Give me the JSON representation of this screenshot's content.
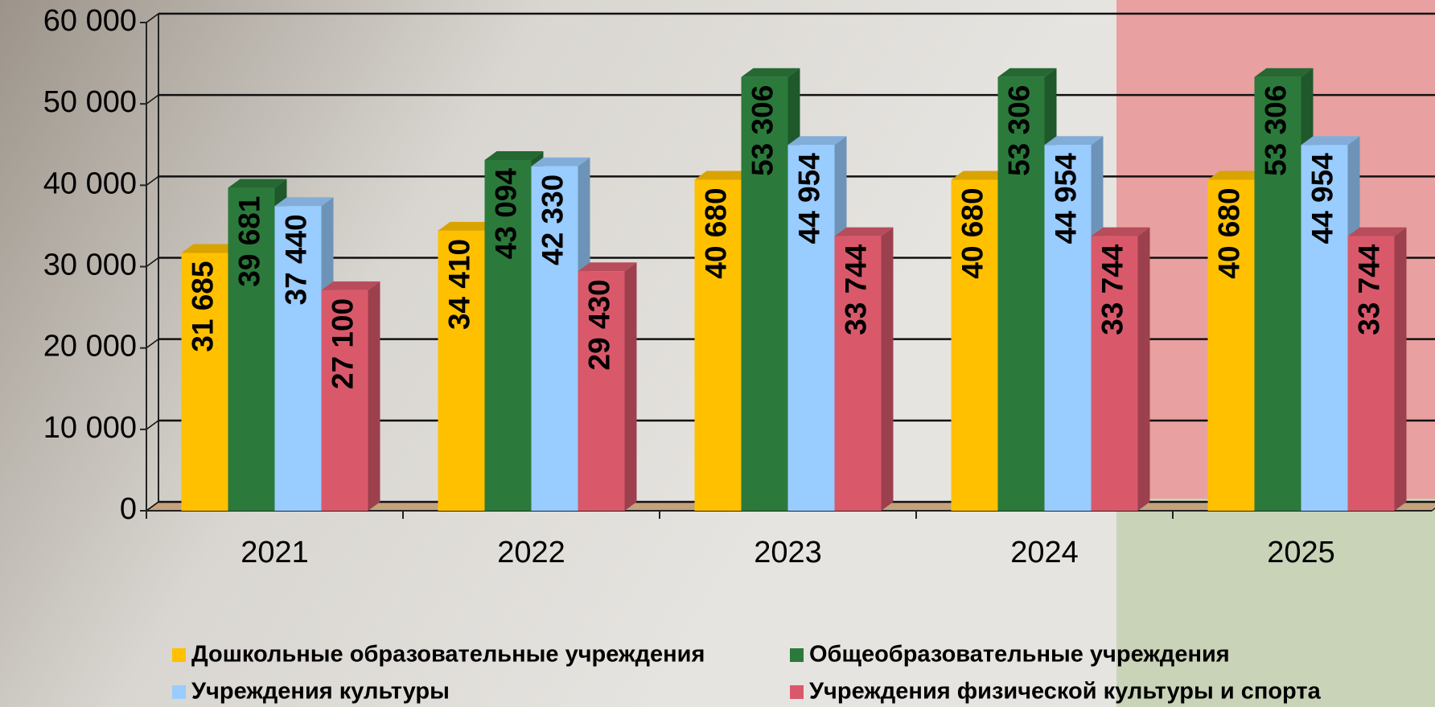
{
  "chart_data": {
    "type": "bar3d",
    "categories": [
      "2021",
      "2022",
      "2023",
      "2024",
      "2025"
    ],
    "series": [
      {
        "name": "Дошкольные образовательные учреждения",
        "color": "#ffc000",
        "values": [
          31685,
          34410,
          40680,
          40680,
          40680
        ],
        "value_labels": [
          "31 685",
          "34 410",
          "40 680",
          "40 680",
          "40 680"
        ]
      },
      {
        "name": "Общеобразовательные учреждения",
        "color": "#2b7a3b",
        "values": [
          39681,
          43094,
          53306,
          53306,
          53306
        ],
        "value_labels": [
          "39 681",
          "43 094",
          "53 306",
          "53 306",
          "53 306"
        ]
      },
      {
        "name": "Учреждения культуры",
        "color": "#99ccff",
        "values": [
          37440,
          42330,
          44954,
          44954,
          44954
        ],
        "value_labels": [
          "37 440",
          "42 330",
          "44 954",
          "44 954",
          "44 954"
        ]
      },
      {
        "name": "Учреждения физической культуры и спорта",
        "color": "#d9596b",
        "values": [
          27100,
          29430,
          33744,
          33744,
          33744
        ],
        "value_labels": [
          "27 100",
          "29 430",
          "33 744",
          "33 744",
          "33 744"
        ]
      }
    ],
    "ylim": [
      0,
      60000
    ],
    "yticks": [
      0,
      {
        "value": 10000,
        "label": "10 000"
      },
      {
        "value": 20000,
        "label": "20 000"
      },
      {
        "value": 30000,
        "label": "30 000"
      },
      {
        "value": 40000,
        "label": "40 000"
      },
      {
        "value": 50000,
        "label": "50 000"
      },
      {
        "value": 60000,
        "label": "60 000"
      }
    ],
    "grid": true
  }
}
